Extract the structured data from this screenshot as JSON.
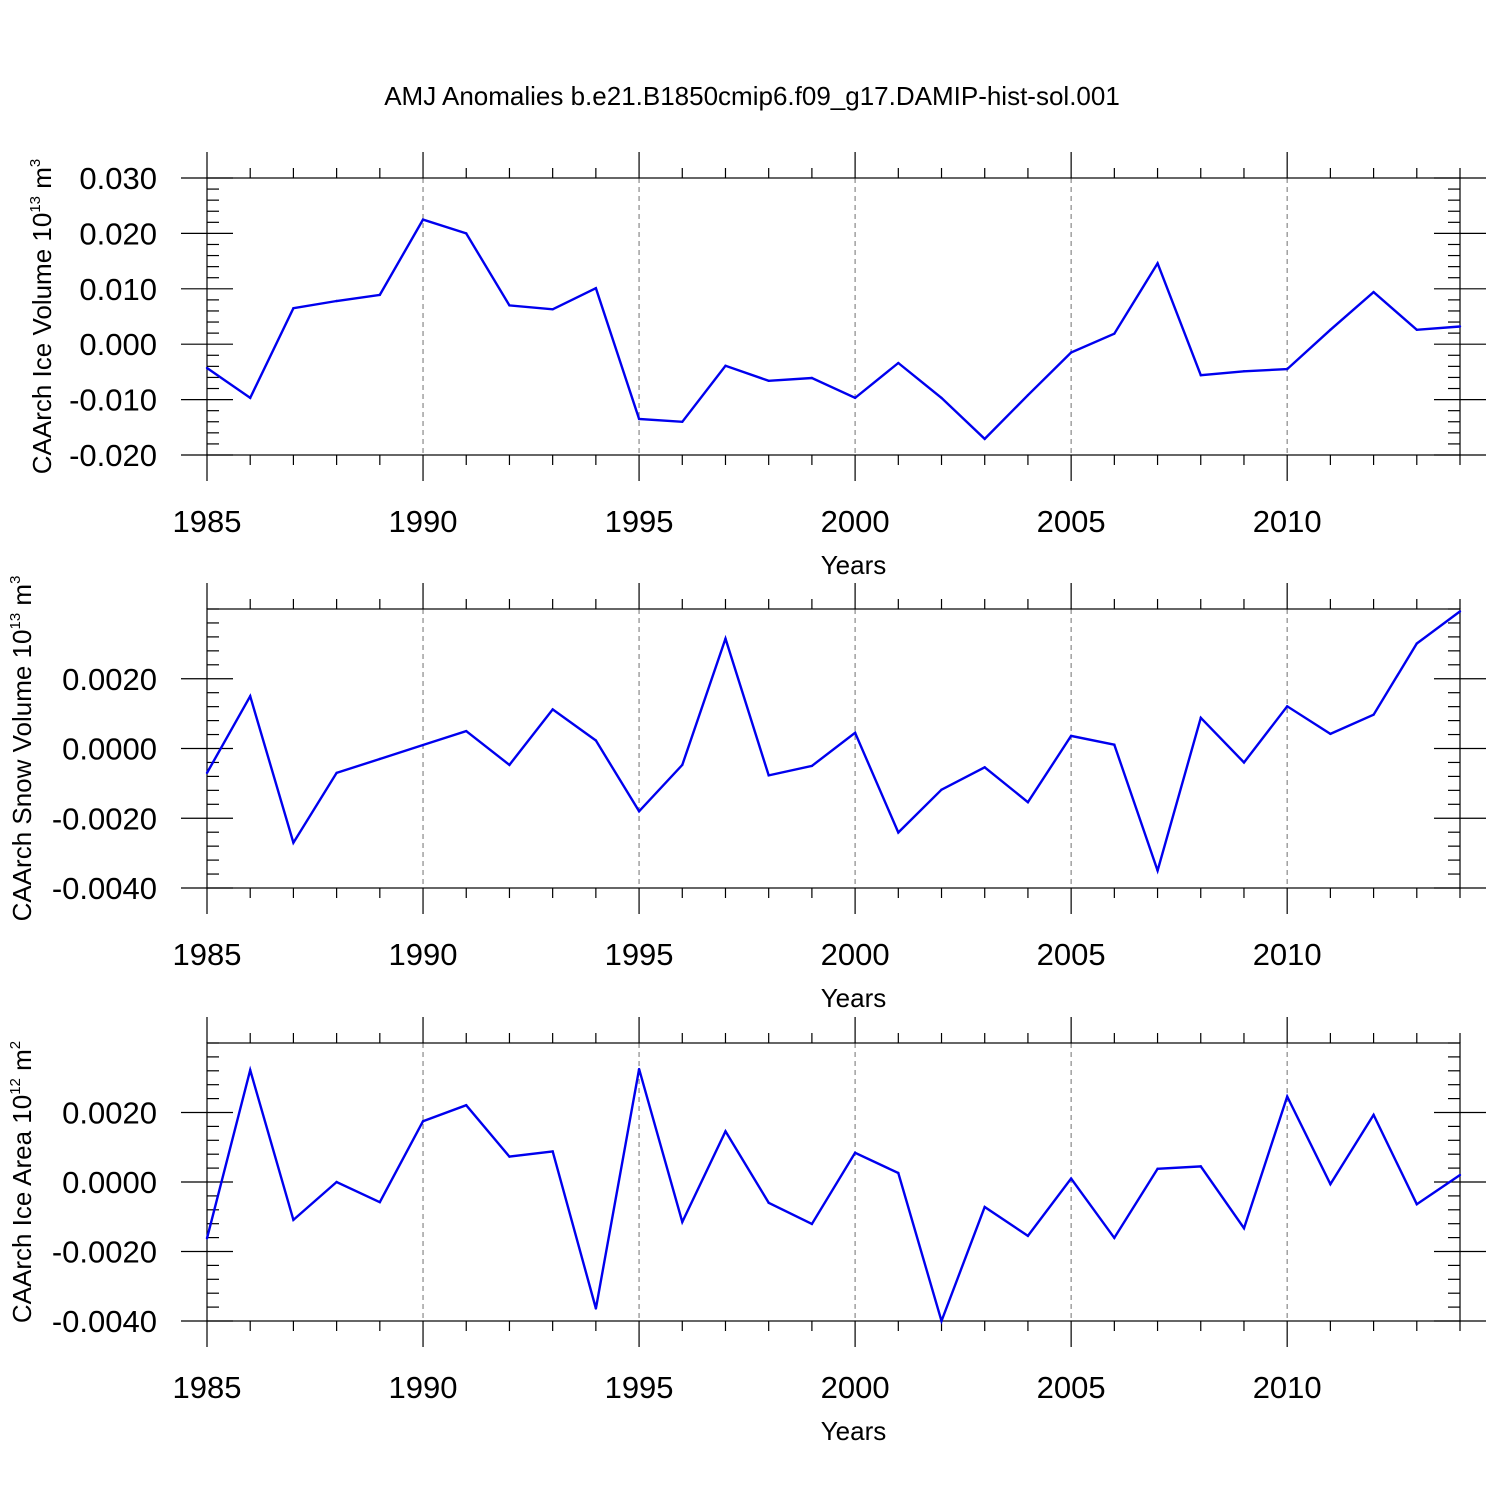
{
  "chart_data": {
    "type": "line",
    "title": "AMJ Anomalies b.e21.B1850cmip6.f09_g17.DAMIP-hist-sol.001",
    "series_color": "#0000ee",
    "x": [
      1985,
      1986,
      1987,
      1988,
      1989,
      1990,
      1991,
      1992,
      1993,
      1994,
      1995,
      1996,
      1997,
      1998,
      1999,
      2000,
      2001,
      2002,
      2003,
      2004,
      2005,
      2006,
      2007,
      2008,
      2009,
      2010,
      2011,
      2012,
      2013,
      2014
    ],
    "panels": [
      {
        "name": "ice-volume",
        "ylabel_main": "CAArch Ice Volume 10",
        "ylabel_exp": "13",
        "ylabel_unit": "m",
        "ylabel_unit_exp": "3",
        "xlabel": "Years",
        "xlim": [
          1985,
          2014
        ],
        "ylim": [
          -0.02,
          0.03
        ],
        "x_tick_values": [
          1985,
          1990,
          1995,
          2000,
          2005,
          2010
        ],
        "x_tick_labels": [
          "1985",
          "1990",
          "1995",
          "2000",
          "2005",
          "2010"
        ],
        "y_tick_values": [
          -0.02,
          -0.01,
          0.0,
          0.01,
          0.02,
          0.03
        ],
        "y_tick_labels": [
          "-0.020",
          "-0.010",
          "0.000",
          "0.010",
          "0.020",
          "0.030"
        ],
        "y_minor_step": 0.002,
        "values": [
          -0.0043,
          -0.0097,
          0.0065,
          0.0078,
          0.0089,
          0.0225,
          0.02,
          0.007,
          0.0063,
          0.0101,
          -0.0135,
          -0.014,
          -0.0039,
          -0.0066,
          -0.0061,
          -0.0097,
          -0.0034,
          -0.0097,
          -0.0171,
          -0.0092,
          -0.0015,
          0.0019,
          0.0146,
          -0.0056,
          -0.0049,
          -0.0045,
          0.0026,
          0.0094,
          0.0026,
          0.0032
        ]
      },
      {
        "name": "snow-volume",
        "ylabel_main": "CAArch Snow Volume 10",
        "ylabel_exp": "13",
        "ylabel_unit": "m",
        "ylabel_unit_exp": "3",
        "xlabel": "Years",
        "xlim": [
          1985,
          2014
        ],
        "ylim": [
          -0.004,
          0.004
        ],
        "x_tick_values": [
          1985,
          1990,
          1995,
          2000,
          2005,
          2010
        ],
        "x_tick_labels": [
          "1985",
          "1990",
          "1995",
          "2000",
          "2005",
          "2010"
        ],
        "y_tick_values": [
          -0.004,
          -0.002,
          0.0,
          0.002
        ],
        "y_tick_labels": [
          "-0.0040",
          "-0.0020",
          "0.0000",
          "0.0020"
        ],
        "y_minor_step": 0.0004,
        "values": [
          -0.0007,
          0.0015,
          -0.0027,
          -0.0007,
          -0.0003,
          0.0001,
          0.0005,
          -0.00047,
          0.00112,
          0.00023,
          -0.0018,
          -0.00047,
          0.00315,
          -0.00077,
          -0.0005,
          0.00045,
          -0.00241,
          -0.00118,
          -0.00054,
          -0.00154,
          0.00036,
          0.00011,
          -0.0035,
          0.00088,
          -0.0004,
          0.00121,
          0.00042,
          0.00097,
          0.00301,
          0.00393
        ]
      },
      {
        "name": "ice-area",
        "ylabel_main": "CAArch Ice Area 10",
        "ylabel_exp": "12",
        "ylabel_unit": "m",
        "ylabel_unit_exp": "2",
        "xlabel": "Years",
        "xlim": [
          1985,
          2014
        ],
        "ylim": [
          -0.004,
          0.004
        ],
        "x_tick_values": [
          1985,
          1990,
          1995,
          2000,
          2005,
          2010
        ],
        "x_tick_labels": [
          "1985",
          "1990",
          "1995",
          "2000",
          "2005",
          "2010"
        ],
        "y_tick_values": [
          -0.004,
          -0.002,
          0.0,
          0.002
        ],
        "y_tick_labels": [
          "-0.0040",
          "-0.0020",
          "0.0000",
          "0.0020"
        ],
        "y_minor_step": 0.0004,
        "values": [
          -0.00162,
          0.00322,
          -0.00109,
          0.0,
          -0.00058,
          0.00175,
          0.00221,
          0.00073,
          0.00088,
          -0.00364,
          0.00325,
          -0.00115,
          0.00146,
          -0.0006,
          -0.00121,
          0.00084,
          0.00026,
          -0.004,
          -0.00072,
          -0.00155,
          0.0001,
          -0.00161,
          0.00038,
          0.00045,
          -0.00133,
          0.00246,
          -6e-05,
          0.00193,
          -0.00064,
          0.0002
        ]
      }
    ]
  }
}
